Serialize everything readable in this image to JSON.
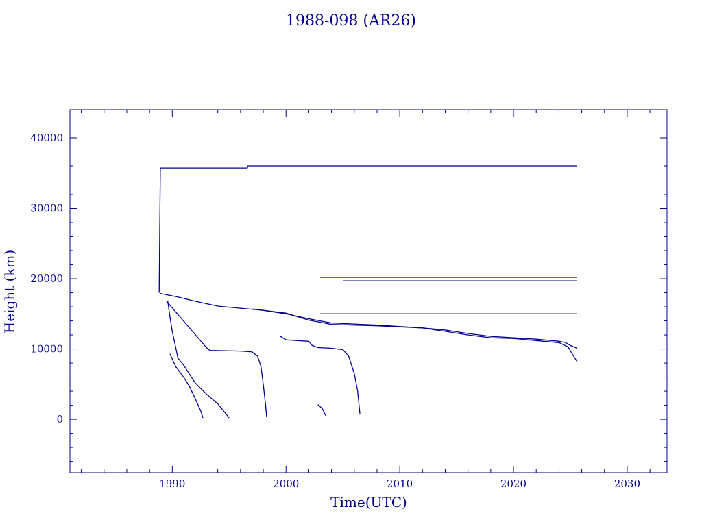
{
  "chart_data": {
    "type": "line",
    "title": "1988-098 (AR26)",
    "xlabel": "Time(UTC)",
    "ylabel": "Height (km)",
    "xlim": [
      1981.0,
      2033.5
    ],
    "ylim": [
      -7600,
      44000
    ],
    "xticks": [
      1990,
      2000,
      2010,
      2020,
      2030
    ],
    "yticks": [
      0,
      10000,
      20000,
      30000,
      40000
    ],
    "color": "#00008b",
    "series": [
      {
        "points": [
          [
            1988.85,
            18000
          ],
          [
            1988.9,
            28000
          ],
          [
            1988.95,
            35700
          ],
          [
            1996.6,
            35700
          ],
          [
            1996.65,
            36000
          ],
          [
            2025.6,
            36000
          ]
        ]
      },
      {
        "points": [
          [
            1988.95,
            17900
          ],
          [
            1990.5,
            17400
          ],
          [
            1992.0,
            16800
          ],
          [
            1994.0,
            16100
          ],
          [
            1996.0,
            15800
          ],
          [
            1998.0,
            15500
          ],
          [
            2000.0,
            15000
          ],
          [
            2002.0,
            14300
          ],
          [
            2004.0,
            13700
          ],
          [
            2008.0,
            13400
          ],
          [
            2012.0,
            13000
          ],
          [
            2014.0,
            12700
          ],
          [
            2016.0,
            12200
          ],
          [
            2018.0,
            11800
          ],
          [
            2020.0,
            11600
          ],
          [
            2022.0,
            11400
          ],
          [
            2024.0,
            11100
          ],
          [
            2024.6,
            10900
          ],
          [
            2025.0,
            10500
          ],
          [
            2025.6,
            10100
          ]
        ]
      },
      {
        "points": [
          [
            1997.0,
            15700
          ],
          [
            2000.0,
            15100
          ],
          [
            2002.0,
            14100
          ],
          [
            2004.0,
            13500
          ],
          [
            2008.0,
            13300
          ],
          [
            2012.0,
            13000
          ],
          [
            2014.0,
            12500
          ],
          [
            2016.0,
            12000
          ],
          [
            2018.0,
            11600
          ],
          [
            2020.0,
            11500
          ],
          [
            2022.0,
            11200
          ],
          [
            2024.0,
            10900
          ],
          [
            2024.8,
            10300
          ],
          [
            2025.2,
            9200
          ],
          [
            2025.6,
            8200
          ]
        ]
      },
      {
        "points": [
          [
            2003.0,
            20200
          ],
          [
            2025.6,
            20200
          ]
        ]
      },
      {
        "points": [
          [
            2005.0,
            19700
          ],
          [
            2025.6,
            19700
          ]
        ]
      },
      {
        "points": [
          [
            2003.0,
            15000
          ],
          [
            2025.6,
            15000
          ]
        ]
      },
      {
        "points": [
          [
            1989.5,
            16800
          ],
          [
            1993.0,
            10200
          ],
          [
            1993.3,
            9800
          ],
          [
            1996.0,
            9700
          ],
          [
            1997.0,
            9600
          ],
          [
            1997.5,
            9000
          ],
          [
            1997.8,
            7500
          ],
          [
            1998.0,
            5000
          ],
          [
            1998.2,
            2000
          ],
          [
            1998.3,
            300
          ]
        ]
      },
      {
        "points": [
          [
            1989.6,
            16800
          ],
          [
            1989.8,
            14500
          ],
          [
            1990.0,
            12500
          ],
          [
            1990.5,
            8700
          ],
          [
            1991.0,
            7700
          ],
          [
            1992.0,
            5200
          ],
          [
            1993.0,
            3600
          ],
          [
            1994.0,
            2200
          ],
          [
            1995.0,
            200
          ]
        ]
      },
      {
        "points": [
          [
            1989.8,
            9300
          ],
          [
            1990.3,
            7500
          ],
          [
            1991.0,
            6000
          ],
          [
            1991.5,
            4700
          ],
          [
            1992.0,
            3000
          ],
          [
            1992.5,
            1200
          ],
          [
            1992.7,
            200
          ]
        ]
      },
      {
        "points": [
          [
            1999.5,
            11800
          ],
          [
            2000.0,
            11300
          ],
          [
            2002.0,
            11100
          ],
          [
            2002.3,
            10500
          ],
          [
            2002.8,
            10200
          ],
          [
            2004.0,
            10100
          ],
          [
            2005.0,
            9900
          ],
          [
            2005.5,
            9000
          ],
          [
            2006.0,
            6500
          ],
          [
            2006.3,
            4000
          ],
          [
            2006.5,
            700
          ]
        ]
      },
      {
        "points": [
          [
            2002.8,
            2100
          ],
          [
            2003.2,
            1500
          ],
          [
            2003.5,
            500
          ]
        ]
      }
    ]
  }
}
